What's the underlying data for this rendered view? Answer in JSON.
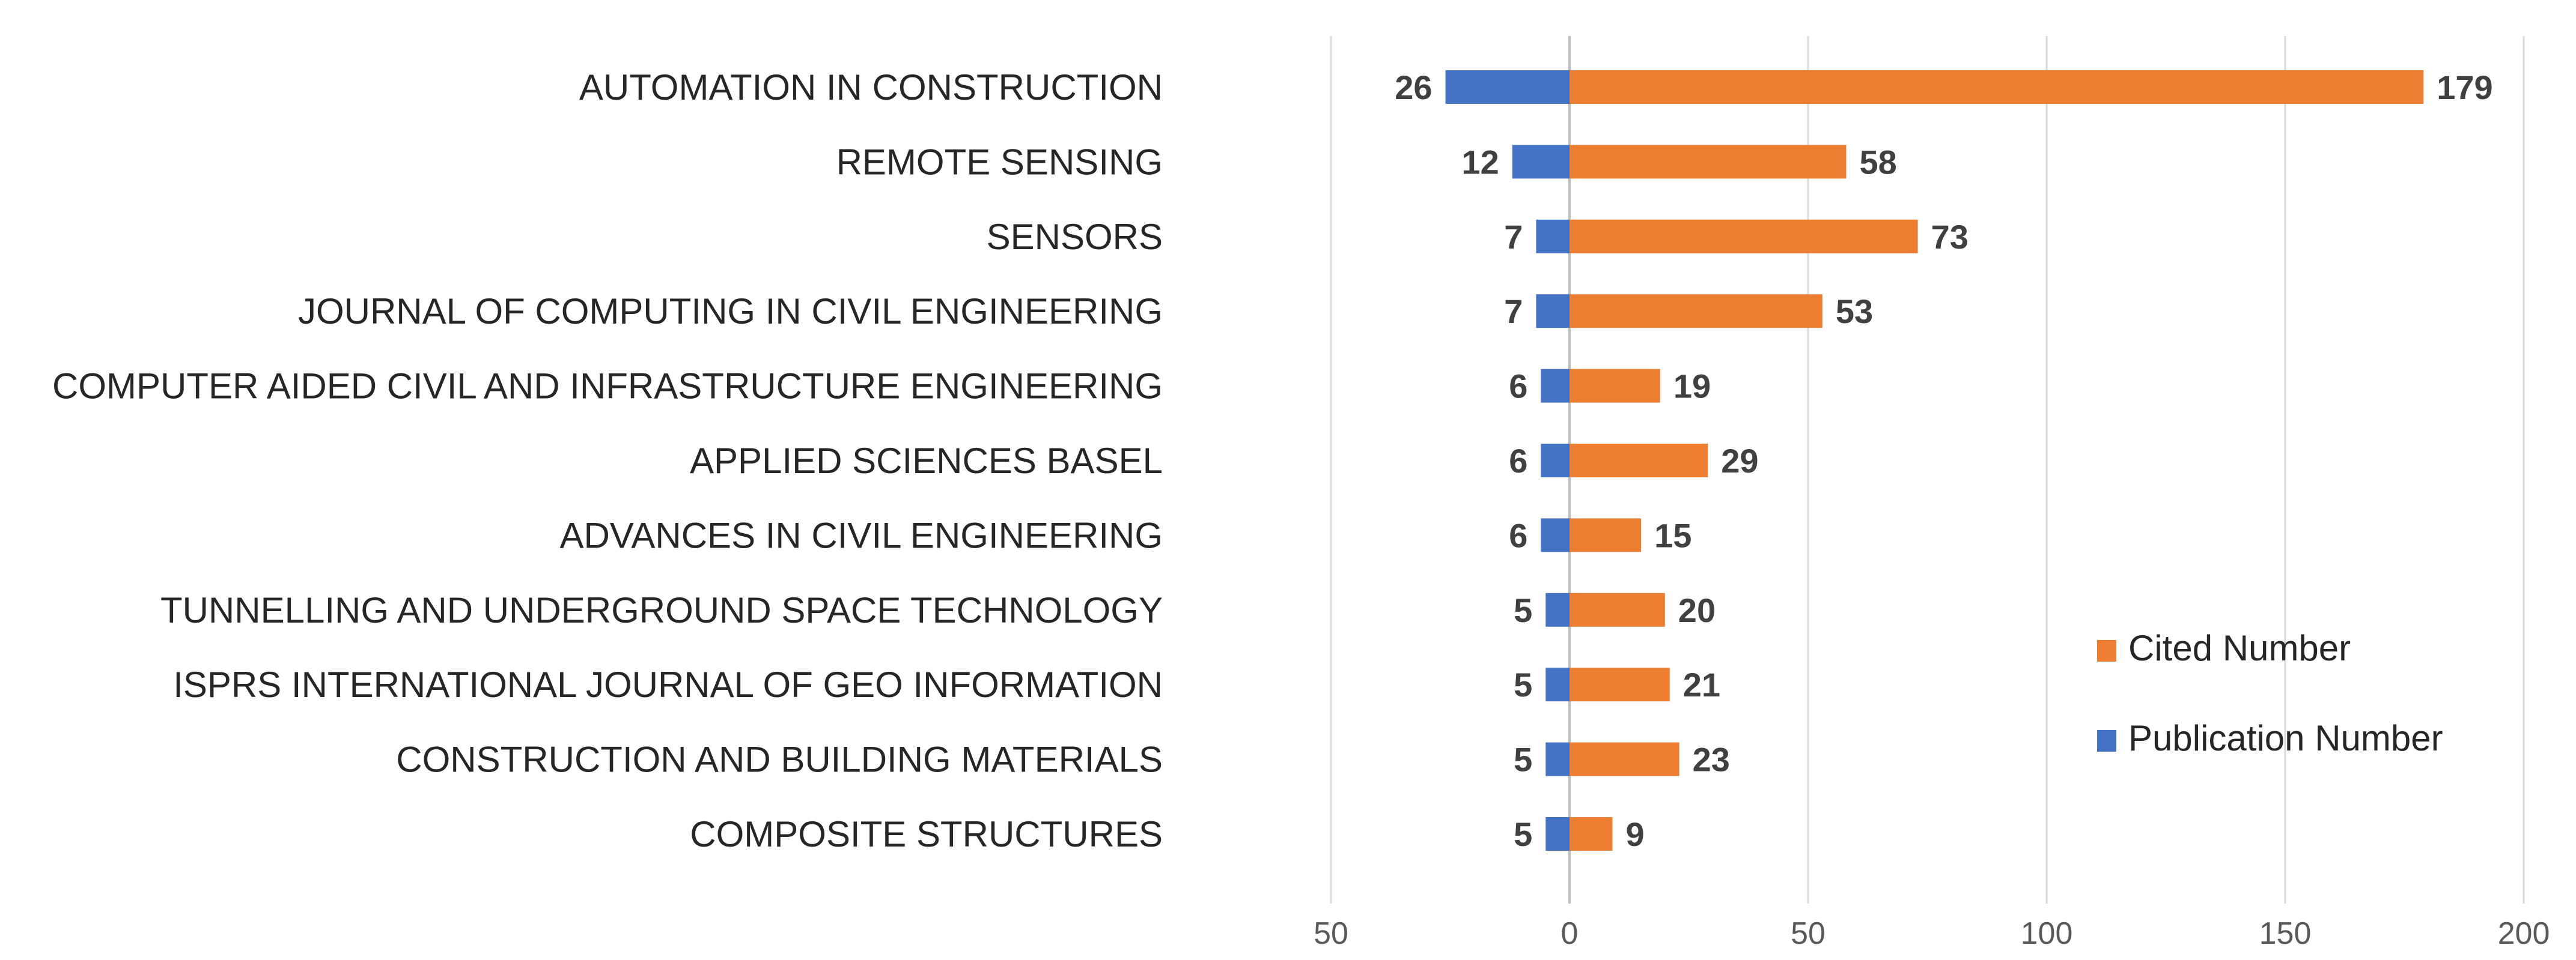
{
  "chart_data": {
    "type": "bar",
    "orientation": "horizontal",
    "categories": [
      "AUTOMATION IN CONSTRUCTION",
      "REMOTE SENSING",
      "SENSORS",
      "JOURNAL OF COMPUTING IN CIVIL ENGINEERING",
      "COMPUTER AIDED CIVIL AND INFRASTRUCTURE ENGINEERING",
      "APPLIED SCIENCES BASEL",
      "ADVANCES IN CIVIL ENGINEERING",
      "TUNNELLING AND UNDERGROUND SPACE TECHNOLOGY",
      "ISPRS INTERNATIONAL JOURNAL OF GEO INFORMATION",
      "CONSTRUCTION AND BUILDING MATERIALS",
      "COMPOSITE STRUCTURES"
    ],
    "series": [
      {
        "name": "Publication Number",
        "color": "#4472c4",
        "direction": "negative",
        "values": [
          26,
          12,
          7,
          7,
          6,
          6,
          6,
          5,
          5,
          5,
          5
        ]
      },
      {
        "name": "Cited Number",
        "color": "#ed7d31",
        "direction": "positive",
        "values": [
          179,
          58,
          73,
          53,
          19,
          29,
          15,
          20,
          21,
          23,
          9
        ]
      }
    ],
    "xlim": [
      -50,
      200
    ],
    "xticks": [
      -50,
      0,
      50,
      100,
      150,
      200
    ],
    "xtick_labels": [
      "50",
      "0",
      "50",
      "100",
      "150",
      "200"
    ],
    "grid": true,
    "legend_position": "right",
    "title": "",
    "xlabel": "",
    "ylabel": ""
  }
}
